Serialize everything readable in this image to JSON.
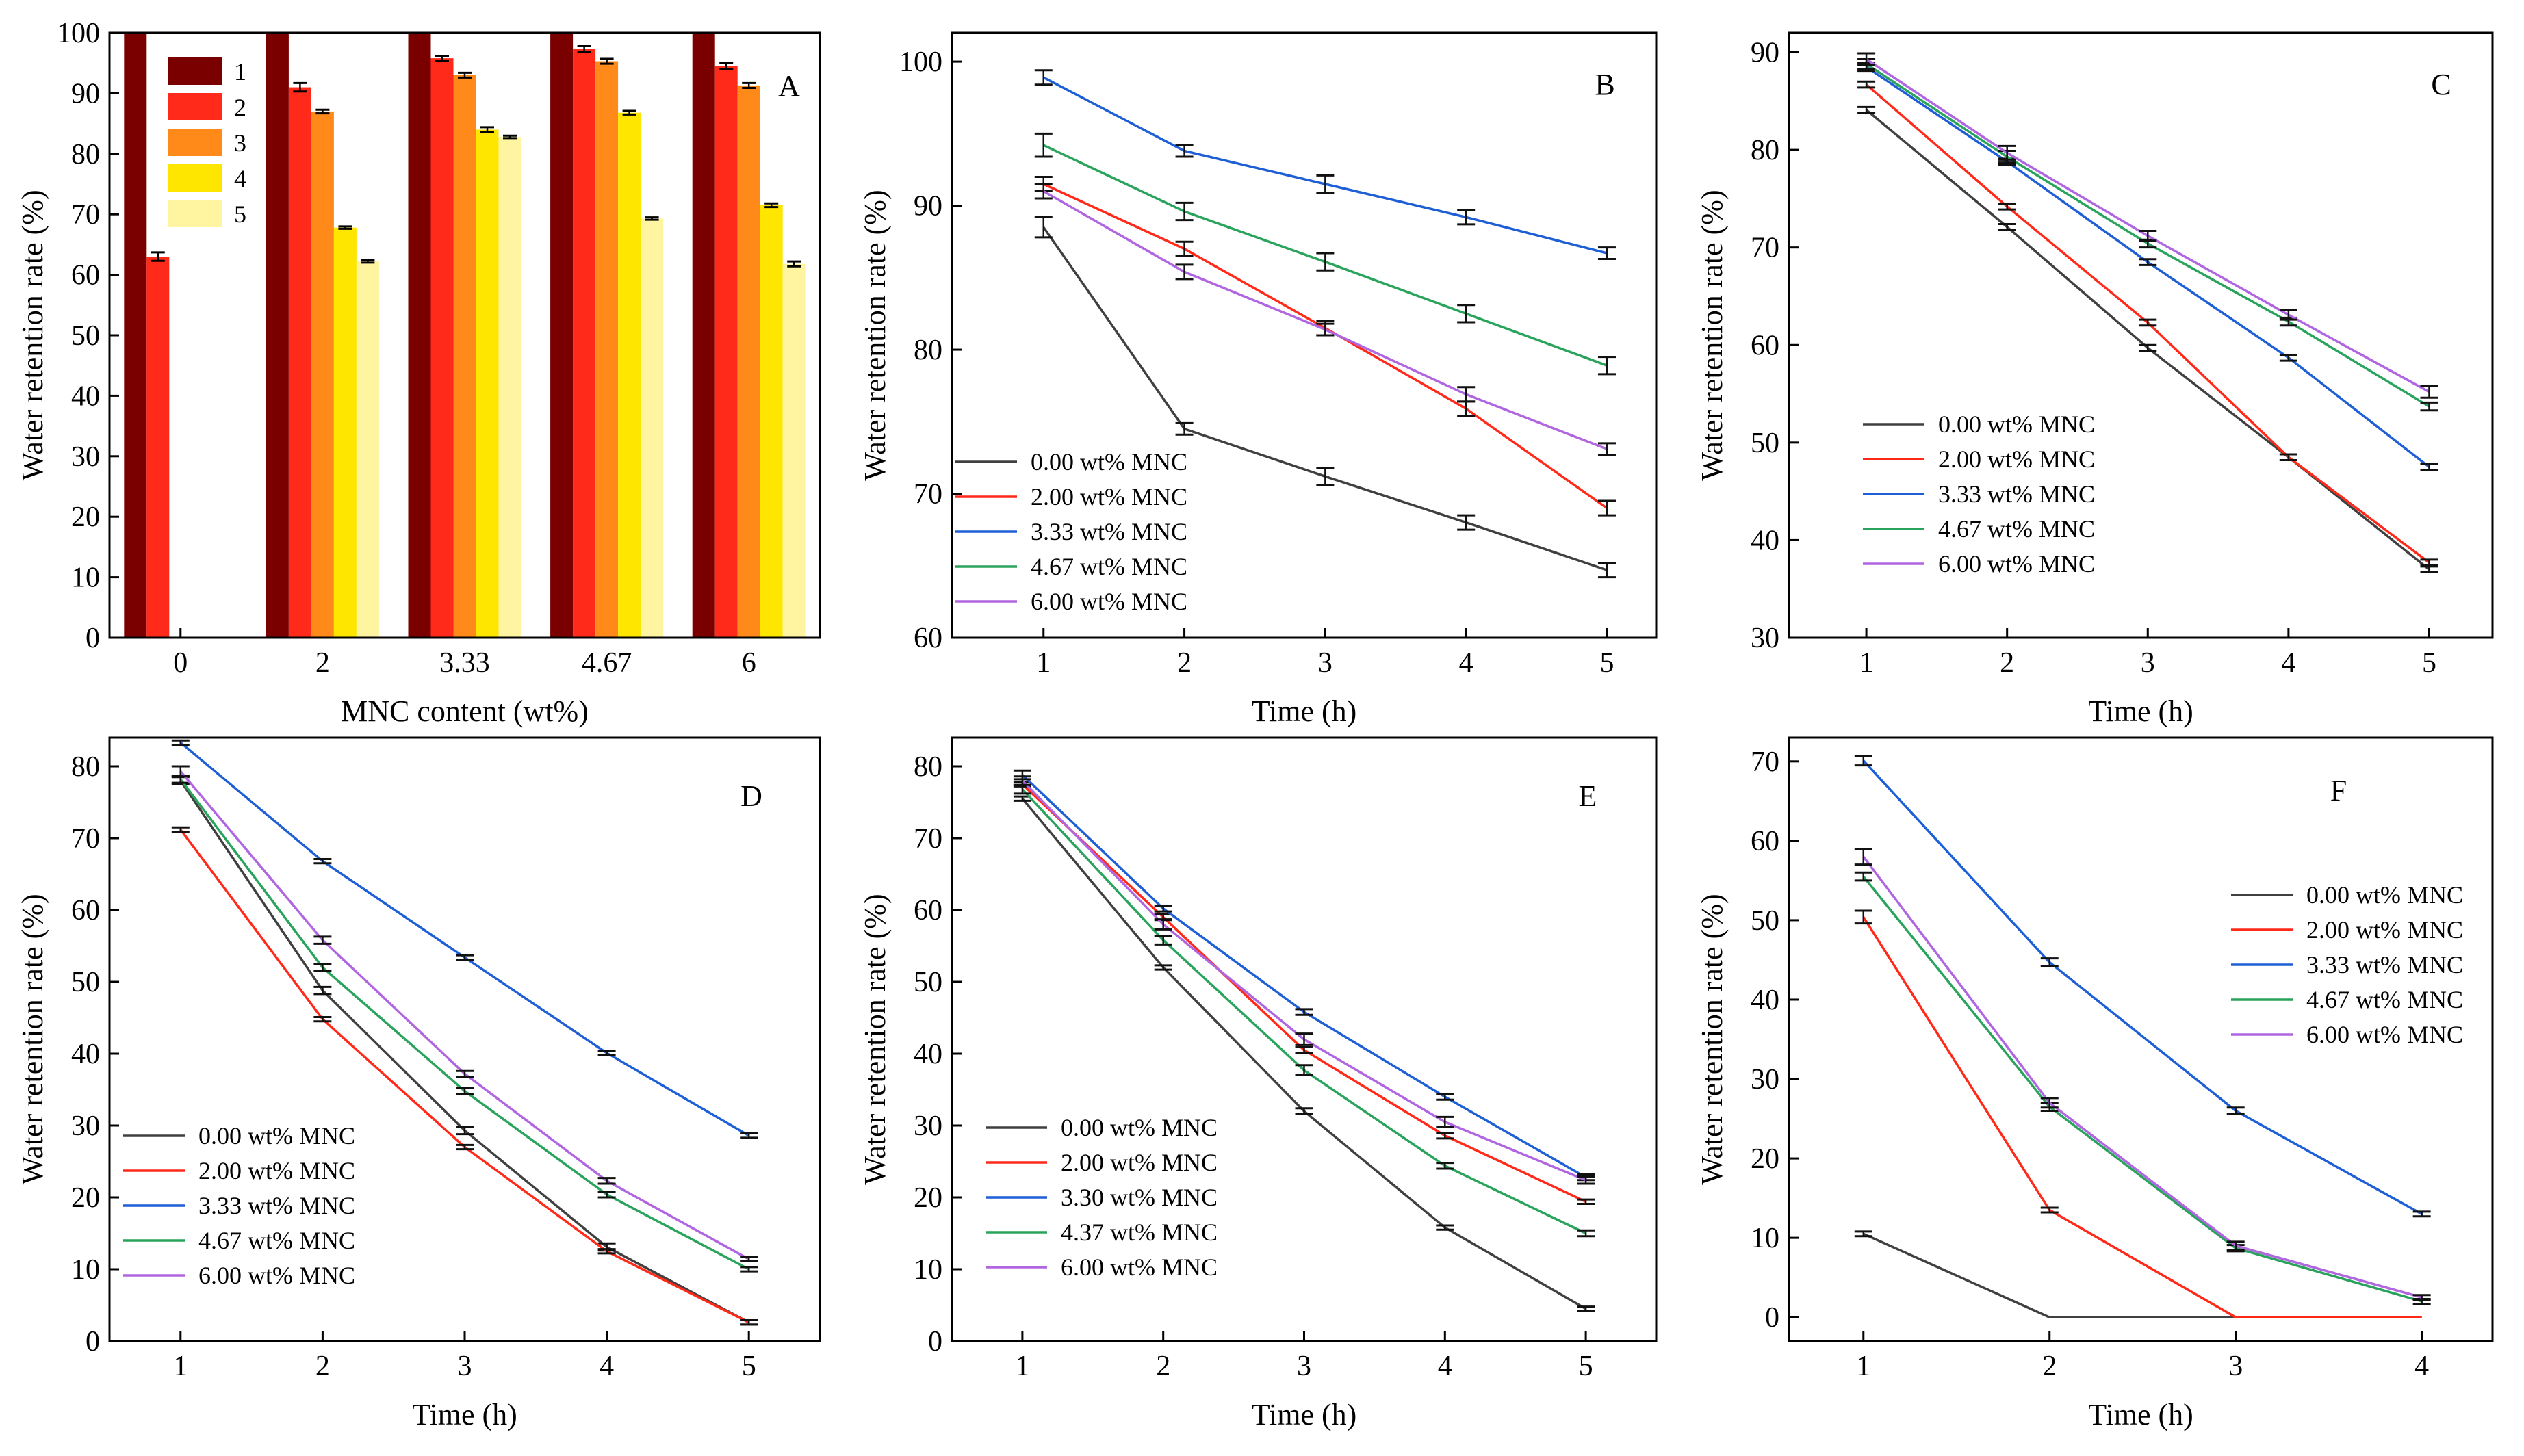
{
  "chart_data": [
    {
      "panel": "A",
      "type": "bar",
      "xlabel": "MNC content (wt%)",
      "ylabel": "Water retention rate (%)",
      "ylim": [
        0,
        100
      ],
      "yticks": [
        0,
        10,
        20,
        30,
        40,
        50,
        60,
        70,
        80,
        90,
        100
      ],
      "categories": [
        "0",
        "2",
        "3.33",
        "4.67",
        "6"
      ],
      "legend_position": "top-left",
      "series": [
        {
          "name": "1",
          "color": "#7a0000",
          "values": [
            100,
            100,
            100,
            100,
            100
          ],
          "errors": [
            0,
            0,
            0,
            0,
            0
          ]
        },
        {
          "name": "2",
          "color": "#ff2a1a",
          "values": [
            63,
            91,
            95.8,
            97.3,
            94.5
          ],
          "errors": [
            0.7,
            0.7,
            0.4,
            0.5,
            0.5
          ]
        },
        {
          "name": "3",
          "color": "#ff8a1a",
          "values": [
            0,
            87,
            93,
            95.3,
            91.3
          ],
          "errors": [
            0,
            0.3,
            0.4,
            0.4,
            0.4
          ]
        },
        {
          "name": "4",
          "color": "#ffe600",
          "values": [
            0,
            67.8,
            84,
            86.8,
            71.5
          ],
          "errors": [
            0,
            0.2,
            0.4,
            0.3,
            0.3
          ]
        },
        {
          "name": "5",
          "color": "#fff5a0",
          "values": [
            0,
            62.2,
            82.8,
            69.3,
            61.8
          ],
          "errors": [
            0,
            0.2,
            0.2,
            0.2,
            0.4
          ]
        }
      ]
    },
    {
      "panel": "B",
      "type": "line",
      "xlabel": "Time (h)",
      "ylabel": "Water retention rate (%)",
      "x": [
        1,
        2,
        3,
        4,
        5
      ],
      "xlim": [
        0.35,
        5.35
      ],
      "ylim": [
        60,
        102
      ],
      "yticks": [
        60,
        70,
        80,
        90,
        100
      ],
      "legend_position": "bottom-left",
      "series": [
        {
          "name": "0.00 wt% MNC",
          "color": "#404040",
          "values": [
            88.5,
            74.5,
            71.2,
            68,
            64.7
          ],
          "errors": [
            0.7,
            0.4,
            0.6,
            0.5,
            0.5
          ]
        },
        {
          "name": "2.00 wt% MNC",
          "color": "#ff2a1a",
          "values": [
            91.5,
            87,
            81.5,
            75.9,
            69
          ],
          "errors": [
            0.5,
            0.5,
            0.5,
            0.5,
            0.5
          ]
        },
        {
          "name": "3.33 wt% MNC",
          "color": "#1f5fd6",
          "values": [
            98.9,
            93.8,
            91.5,
            89.2,
            86.7
          ],
          "errors": [
            0.5,
            0.4,
            0.6,
            0.5,
            0.4
          ]
        },
        {
          "name": "4.67 wt% MNC",
          "color": "#2aa35c",
          "values": [
            94.2,
            89.6,
            86.1,
            82.5,
            78.9
          ],
          "errors": [
            0.8,
            0.6,
            0.6,
            0.6,
            0.6
          ]
        },
        {
          "name": "6.00 wt% MNC",
          "color": "#b066e0",
          "values": [
            91,
            85.4,
            81.4,
            76.9,
            73.1
          ],
          "errors": [
            0.5,
            0.5,
            0.4,
            0.5,
            0.4
          ]
        }
      ]
    },
    {
      "panel": "C",
      "type": "line",
      "xlabel": "Time (h)",
      "ylabel": "Water retention rate (%)",
      "x": [
        1,
        2,
        3,
        4,
        5
      ],
      "xlim": [
        0.45,
        5.45
      ],
      "ylim": [
        30,
        92
      ],
      "yticks": [
        30,
        40,
        50,
        60,
        70,
        80,
        90
      ],
      "legend_position": "middle-left",
      "series": [
        {
          "name": "0.00 wt% MNC",
          "color": "#404040",
          "values": [
            84.1,
            72.1,
            59.7,
            48.5,
            37
          ],
          "errors": [
            0.3,
            0.3,
            0.3,
            0.3,
            0.3
          ]
        },
        {
          "name": "2.00 wt% MNC",
          "color": "#ff2a1a",
          "values": [
            86.7,
            74.2,
            62.3,
            48.5,
            37.7
          ],
          "errors": [
            0.3,
            0.3,
            0.3,
            0.3,
            0.3
          ]
        },
        {
          "name": "3.33 wt% MNC",
          "color": "#1f5fd6",
          "values": [
            88.5,
            78.8,
            68.5,
            58.7,
            47.5
          ],
          "errors": [
            0.4,
            0.3,
            0.3,
            0.3,
            0.3
          ]
        },
        {
          "name": "4.67 wt% MNC",
          "color": "#2aa35c",
          "values": [
            88.8,
            79.3,
            70.4,
            62.4,
            53.7
          ],
          "errors": [
            0.5,
            0.6,
            0.4,
            0.4,
            0.4
          ]
        },
        {
          "name": "6.00 wt% MNC",
          "color": "#b066e0",
          "values": [
            89.3,
            79.7,
            71.2,
            63.1,
            55.2
          ],
          "errors": [
            0.6,
            0.7,
            0.5,
            0.5,
            0.6
          ]
        }
      ]
    },
    {
      "panel": "D",
      "type": "line",
      "xlabel": "Time (h)",
      "ylabel": "Water retention rate (%)",
      "x": [
        1,
        2,
        3,
        4,
        5
      ],
      "xlim": [
        0.5,
        5.5
      ],
      "ylim": [
        0,
        84
      ],
      "yticks": [
        0,
        10,
        20,
        30,
        40,
        50,
        60,
        70,
        80
      ],
      "legend_position": "bottom-left",
      "series": [
        {
          "name": "0.00 wt% MNC",
          "color": "#404040",
          "values": [
            78,
            48.8,
            29.3,
            13.1,
            2.6
          ],
          "errors": [
            0.5,
            0.5,
            0.5,
            0.5,
            0.3
          ]
        },
        {
          "name": "2.00 wt% MNC",
          "color": "#ff2a1a",
          "values": [
            71.2,
            44.8,
            27,
            12.5,
            2.6
          ],
          "errors": [
            0.3,
            0.3,
            0.3,
            0.3,
            0.3
          ]
        },
        {
          "name": "3.33 wt% MNC",
          "color": "#1f5fd6",
          "values": [
            83.3,
            66.8,
            53.4,
            40.1,
            28.6
          ],
          "errors": [
            0.3,
            0.3,
            0.3,
            0.3,
            0.3
          ]
        },
        {
          "name": "4.67 wt% MNC",
          "color": "#2aa35c",
          "values": [
            78.2,
            52,
            34.8,
            20.4,
            10
          ],
          "errors": [
            0.5,
            0.5,
            0.4,
            0.4,
            0.3
          ]
        },
        {
          "name": "6.00 wt% MNC",
          "color": "#b066e0",
          "values": [
            79.3,
            55.8,
            37.2,
            22.3,
            11.4
          ],
          "errors": [
            0.7,
            0.5,
            0.4,
            0.4,
            0.3
          ]
        }
      ]
    },
    {
      "panel": "E",
      "type": "line",
      "xlabel": "Time (h)",
      "ylabel": "Water retention rate (%)",
      "x": [
        1,
        2,
        3,
        4,
        5
      ],
      "xlim": [
        0.5,
        5.5
      ],
      "ylim": [
        0,
        84
      ],
      "yticks": [
        0,
        10,
        20,
        30,
        40,
        50,
        60,
        70,
        80
      ],
      "legend_position": "bottom-left",
      "series": [
        {
          "name": "0.00 wt% MNC",
          "color": "#404040",
          "values": [
            75.5,
            52,
            32,
            15.8,
            4.5
          ],
          "errors": [
            0.3,
            0.3,
            0.4,
            0.3,
            0.3
          ]
        },
        {
          "name": "2.00 wt% MNC",
          "color": "#ff2a1a",
          "values": [
            77.5,
            59,
            40.5,
            28.6,
            19.4
          ],
          "errors": [
            0.3,
            0.4,
            0.4,
            0.4,
            0.3
          ]
        },
        {
          "name": "3.30 wt% MNC",
          "color": "#1f5fd6",
          "values": [
            78.8,
            60.2,
            45.8,
            34,
            22.8
          ],
          "errors": [
            0.6,
            0.4,
            0.4,
            0.4,
            0.4
          ]
        },
        {
          "name": "4.37 wt% MNC",
          "color": "#2aa35c",
          "values": [
            76.8,
            55.8,
            37.7,
            24.4,
            15
          ],
          "errors": [
            0.6,
            0.6,
            0.7,
            0.4,
            0.4
          ]
        },
        {
          "name": "6.00 wt% MNC",
          "color": "#b066e0",
          "values": [
            78,
            58,
            42,
            30.5,
            22.4
          ],
          "errors": [
            0.6,
            0.7,
            0.8,
            0.7,
            0.5
          ]
        }
      ]
    },
    {
      "panel": "F",
      "type": "line",
      "xlabel": "Time (h)",
      "ylabel": "Water retention rate (%)",
      "x": [
        1,
        2,
        3,
        4
      ],
      "xlim": [
        0.6,
        4.38
      ],
      "ylim": [
        -3,
        73
      ],
      "yticks": [
        0,
        10,
        20,
        30,
        40,
        50,
        60,
        70
      ],
      "legend_position": "top-right",
      "series": [
        {
          "name": "0.00 wt% MNC",
          "color": "#404040",
          "values": [
            10.5,
            0,
            0,
            0
          ],
          "errors": [
            0.3,
            0,
            0,
            0
          ]
        },
        {
          "name": "2.00 wt% MNC",
          "color": "#ff2a1a",
          "values": [
            50.4,
            13.5,
            0,
            0
          ],
          "errors": [
            0.8,
            0.3,
            0,
            0
          ]
        },
        {
          "name": "3.33 wt% MNC",
          "color": "#1f5fd6",
          "values": [
            70.1,
            44.7,
            26,
            13
          ],
          "errors": [
            0.6,
            0.5,
            0.4,
            0.3
          ]
        },
        {
          "name": "4.67 wt% MNC",
          "color": "#2aa35c",
          "values": [
            55.5,
            26.5,
            8.7,
            2
          ],
          "errors": [
            0.5,
            0.5,
            0.4,
            0.3
          ]
        },
        {
          "name": "6.00 wt% MNC",
          "color": "#b066e0",
          "values": [
            58,
            27,
            9,
            2.5
          ],
          "errors": [
            1,
            0.6,
            0.5,
            0.3
          ]
        }
      ]
    }
  ]
}
